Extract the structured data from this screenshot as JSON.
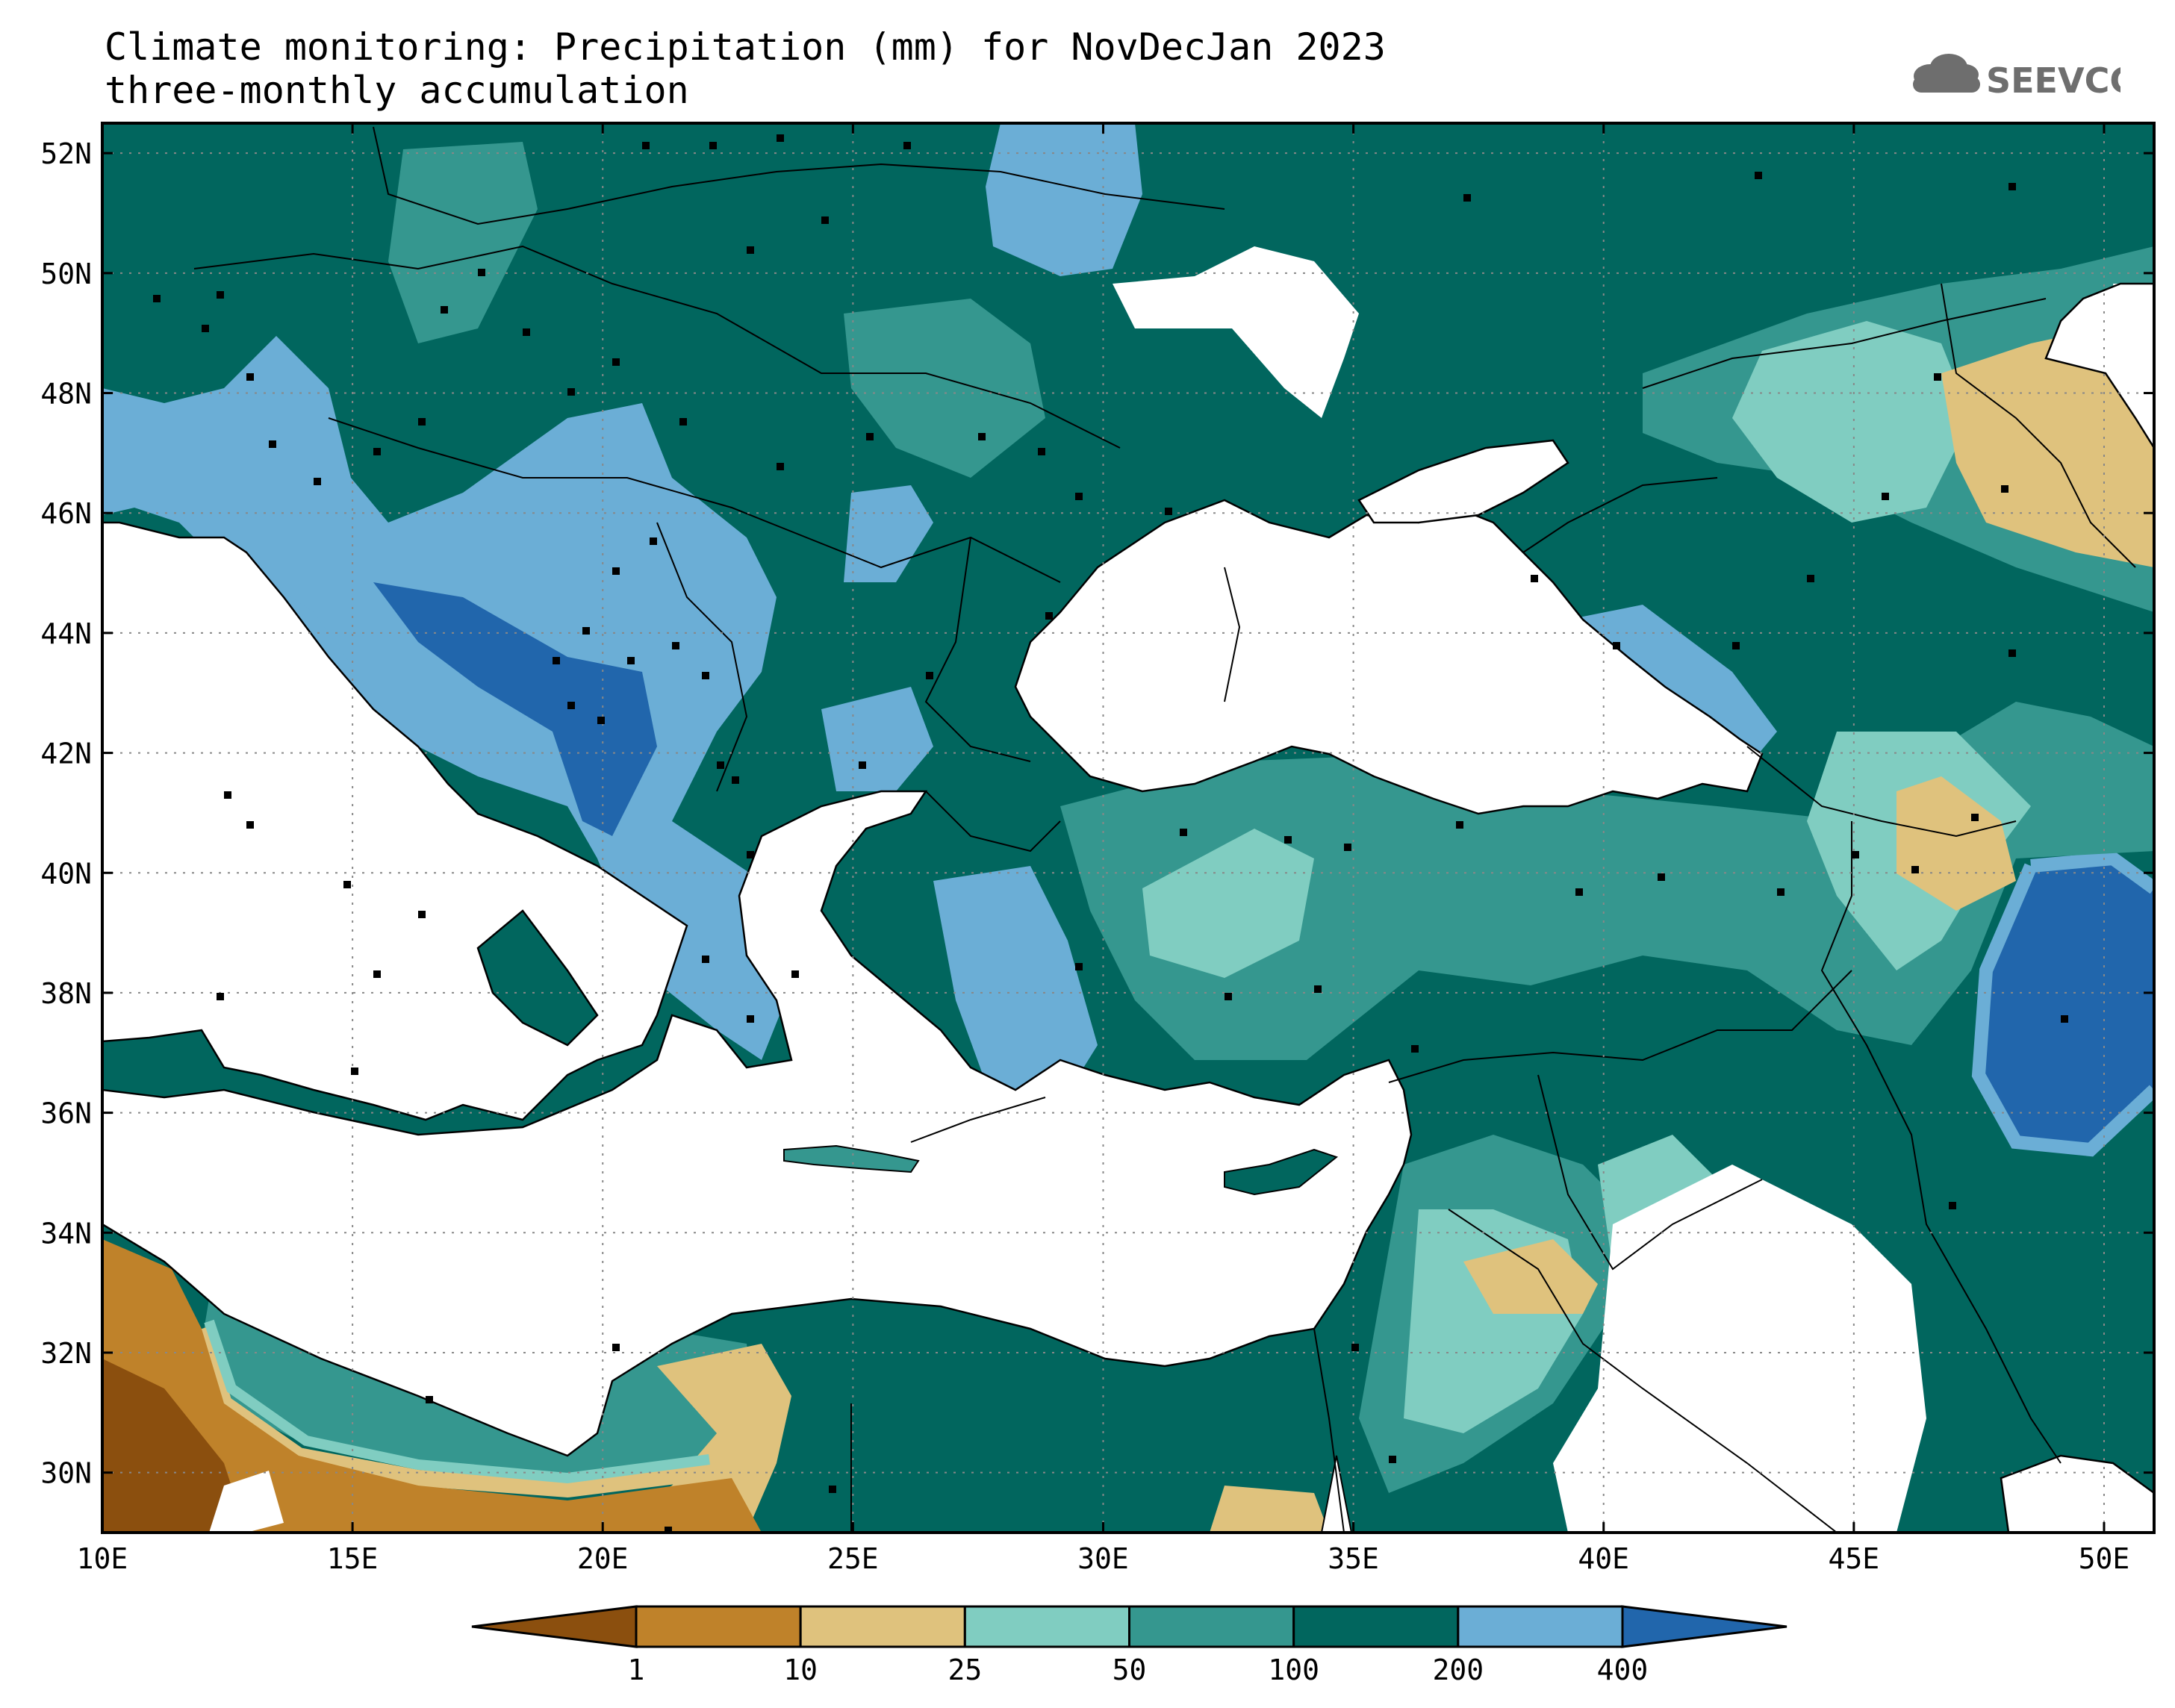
{
  "title": {
    "line1": "Climate monitoring: Precipitation (mm) for NovDecJan 2023",
    "line2": "three-monthly accumulation"
  },
  "logo": {
    "text": "SEEVCCC",
    "icon": "cloud-icon"
  },
  "map": {
    "lon_range": [
      10,
      51
    ],
    "lat_range": [
      29,
      52.5
    ],
    "lon_ticks": [
      "10E",
      "15E",
      "20E",
      "25E",
      "30E",
      "35E",
      "40E",
      "45E",
      "50E"
    ],
    "lat_ticks": [
      "52N",
      "50N",
      "48N",
      "46N",
      "44N",
      "42N",
      "40N",
      "38N",
      "36N",
      "34N",
      "32N",
      "30N"
    ],
    "grid": "dotted",
    "field": "Precipitation (mm)",
    "stations": "black square markers"
  },
  "legend": {
    "bins": [
      {
        "label": "<1",
        "color": "#8b4f0e"
      },
      {
        "label": "1-10",
        "color": "#bf822a"
      },
      {
        "label": "10-25",
        "color": "#dfc27d"
      },
      {
        "label": "25-50",
        "color": "#80cdc1"
      },
      {
        "label": "50-100",
        "color": "#35978f"
      },
      {
        "label": "100-200",
        "color": "#01665e"
      },
      {
        "label": "200-400",
        "color": "#6baed6"
      },
      {
        "label": ">400",
        "color": "#2166ac"
      }
    ],
    "tick_labels": [
      "1",
      "10",
      "25",
      "50",
      "100",
      "200",
      "400"
    ]
  },
  "colors": {
    "sea": "#ffffff",
    "coast": "#000000",
    "borders": "#000000"
  }
}
